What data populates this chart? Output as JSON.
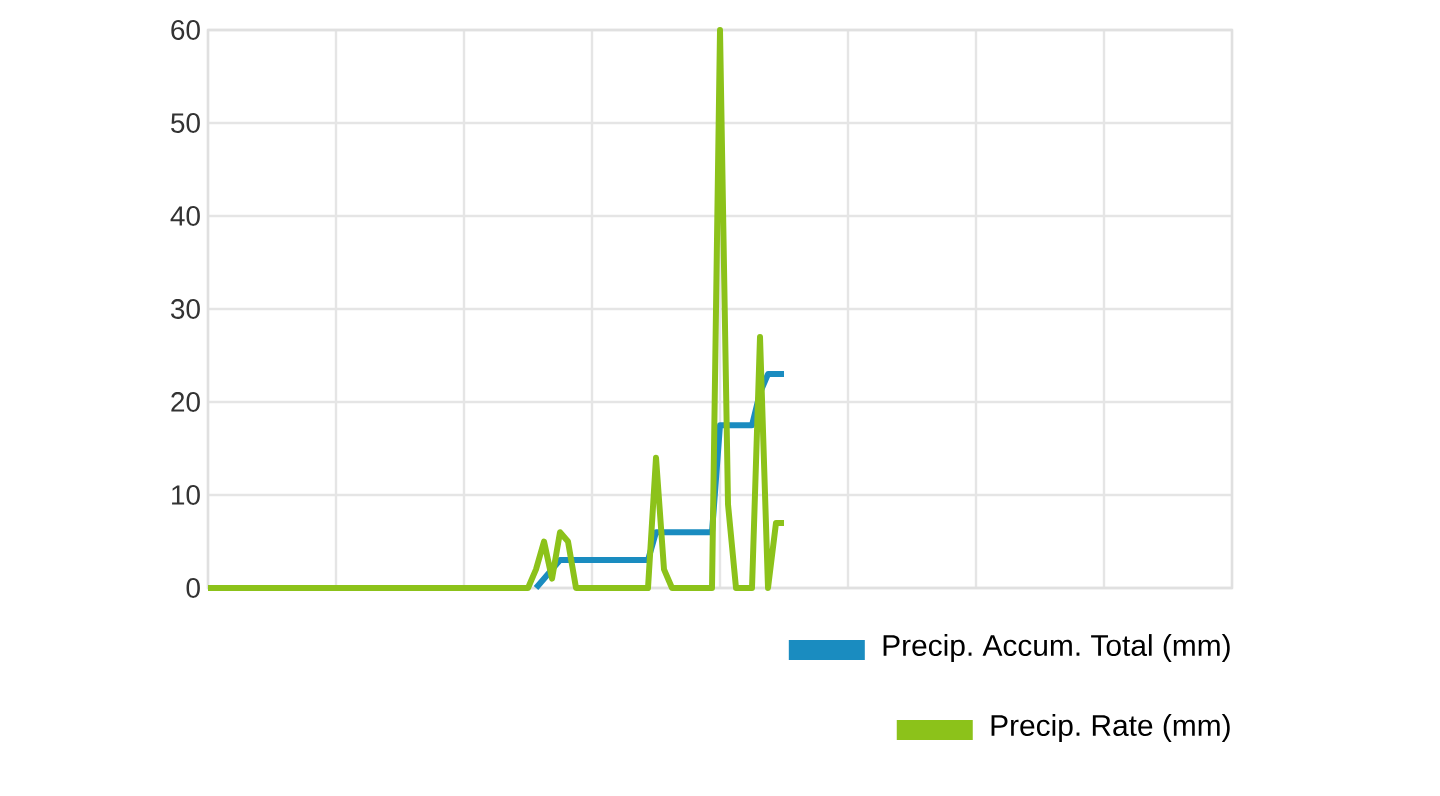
{
  "chart_data": {
    "type": "line",
    "categories": [
      null,
      null,
      null,
      null,
      null,
      null,
      null,
      null,
      null,
      null,
      null,
      null,
      null,
      null,
      null,
      null,
      null,
      null,
      null,
      null,
      null,
      null,
      null,
      null,
      null,
      null,
      null,
      null,
      null,
      null,
      null,
      null,
      null,
      null,
      null,
      null,
      null,
      null,
      null,
      null,
      null,
      null,
      null,
      null,
      null,
      null,
      null,
      null,
      null,
      null,
      null,
      null,
      null,
      null,
      null,
      null,
      null,
      null,
      null,
      null,
      null,
      null,
      null,
      null,
      null,
      null,
      null,
      null,
      null,
      null,
      null,
      null,
      null,
      null,
      null,
      null,
      null,
      null,
      null,
      null,
      null,
      null,
      null,
      null,
      null,
      null,
      null,
      null,
      null,
      null,
      null,
      null,
      null,
      null,
      null,
      null,
      null,
      null,
      null,
      null,
      null,
      null,
      null,
      null,
      null,
      null,
      null,
      null,
      null,
      null,
      null,
      null,
      null,
      null,
      null,
      null,
      null,
      null,
      null,
      null,
      null,
      null,
      null,
      null,
      null,
      null,
      null,
      null,
      null
    ],
    "series": [
      {
        "name": "Precip. Accum. Total (mm)",
        "color": "#1a8cc0",
        "values": [
          null,
          null,
          null,
          null,
          null,
          null,
          null,
          null,
          null,
          null,
          null,
          null,
          null,
          null,
          null,
          null,
          null,
          null,
          null,
          null,
          null,
          null,
          null,
          null,
          null,
          null,
          null,
          null,
          null,
          null,
          null,
          null,
          null,
          null,
          null,
          null,
          null,
          null,
          null,
          null,
          null,
          0,
          1,
          2,
          3,
          3,
          3,
          3,
          3,
          3,
          3,
          3,
          3,
          3,
          3,
          3,
          6,
          6,
          6,
          6,
          6,
          6,
          6,
          6,
          17.5,
          17.5,
          17.5,
          17.5,
          17.5,
          21,
          23,
          23,
          23,
          null,
          null,
          null,
          null,
          null,
          null,
          null,
          null,
          null,
          null,
          null,
          null,
          null,
          null,
          null,
          null,
          null,
          null,
          null,
          null,
          null,
          null,
          null,
          null,
          null,
          null,
          null,
          null,
          null,
          null,
          null,
          null,
          null,
          null,
          null,
          null,
          null,
          null,
          null,
          null,
          null,
          null,
          null,
          null,
          null,
          null,
          null,
          null,
          null,
          null,
          null,
          null,
          null,
          null,
          null,
          null
        ]
      },
      {
        "name": "Precip. Rate (mm)",
        "color": "#8cc21a",
        "values": [
          0,
          0,
          0,
          0,
          0,
          0,
          0,
          0,
          0,
          0,
          0,
          0,
          0,
          0,
          0,
          0,
          0,
          0,
          0,
          0,
          0,
          0,
          0,
          0,
          0,
          0,
          0,
          0,
          0,
          0,
          0,
          0,
          0,
          0,
          0,
          0,
          0,
          0,
          0,
          0,
          0,
          2,
          5,
          1,
          6,
          5,
          0,
          0,
          0,
          0,
          0,
          0,
          0,
          0,
          0,
          0,
          14,
          2,
          0,
          0,
          0,
          0,
          0,
          0,
          60,
          9,
          0,
          0,
          0,
          27,
          0,
          7,
          7,
          null,
          null,
          null,
          null,
          null,
          null,
          null,
          null,
          null,
          null,
          null,
          null,
          null,
          null,
          null,
          null,
          null,
          null,
          null,
          null,
          null,
          null,
          null,
          null,
          null,
          null,
          null,
          null,
          null,
          null,
          null,
          null,
          null,
          null,
          null,
          null,
          null,
          null,
          null,
          null,
          null,
          null,
          null,
          null,
          null,
          null,
          null,
          null,
          null,
          null,
          null,
          null,
          null,
          null,
          null,
          null
        ]
      }
    ],
    "ylim": [
      0,
      60
    ],
    "yticks": [
      0,
      10,
      20,
      30,
      40,
      50,
      60
    ],
    "grid": true,
    "legend": "bottom right",
    "marker": "none",
    "line_style": "solid"
  }
}
